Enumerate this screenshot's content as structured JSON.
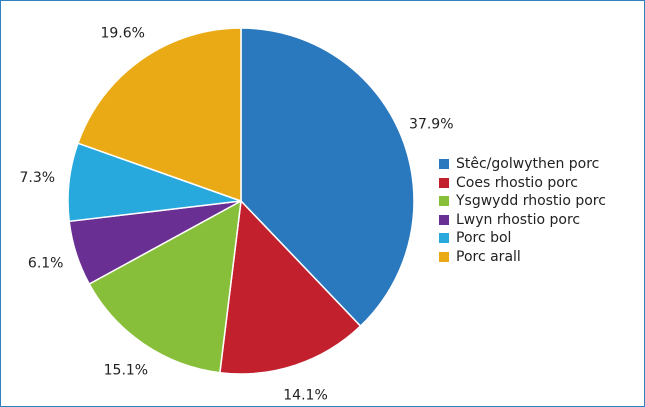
{
  "chart_data": {
    "type": "pie",
    "start_angle_deg": 0,
    "direction": "clockwise",
    "slices": [
      {
        "label": "Stêc/golwythen porc",
        "value": 37.9,
        "display": "37.9%",
        "color": "#2a78bd"
      },
      {
        "label": "Coes rhostio porc",
        "value": 14.1,
        "display": "14.1%",
        "color": "#c3202e"
      },
      {
        "label": "Ysgwydd rhostio porc",
        "value": 15.1,
        "display": "15.1%",
        "color": "#88bf3a"
      },
      {
        "label": "Lwyn rhostio porc",
        "value": 6.1,
        "display": "6.1%",
        "color": "#6a2f92"
      },
      {
        "label": "Porc bol",
        "value": 7.3,
        "display": "7.3%",
        "color": "#27a9de"
      },
      {
        "label": "Porc arall",
        "value": 19.6,
        "display": "19.6%",
        "color": "#e9aa16"
      }
    ],
    "legend_position": "right",
    "frame_border_color": "#2f7fc1"
  }
}
